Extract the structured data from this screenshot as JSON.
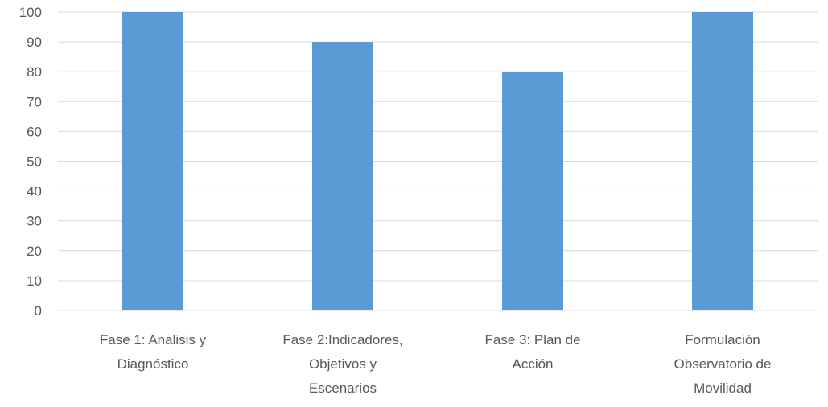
{
  "chart_data": {
    "type": "bar",
    "categories": [
      [
        "Fase 1: Analisis y",
        "Diagnóstico"
      ],
      [
        "Fase 2:Indicadores,",
        "Objetivos y",
        "Escenarios"
      ],
      [
        "Fase 3: Plan de",
        "Acción"
      ],
      [
        "Formulación",
        "Observatorio de",
        "Movilidad"
      ]
    ],
    "values": [
      100,
      90,
      80,
      100
    ],
    "ylim": [
      0,
      100
    ],
    "yticks": [
      "0",
      "10",
      "20",
      "30",
      "40",
      "50",
      "60",
      "70",
      "80",
      "90",
      "100"
    ],
    "title": "",
    "xlabel": "",
    "ylabel": "",
    "grid": true,
    "legend": "none",
    "colors": {
      "bar": "#5b9bd5",
      "grid": "#d9d9d9",
      "text": "#595959"
    }
  }
}
